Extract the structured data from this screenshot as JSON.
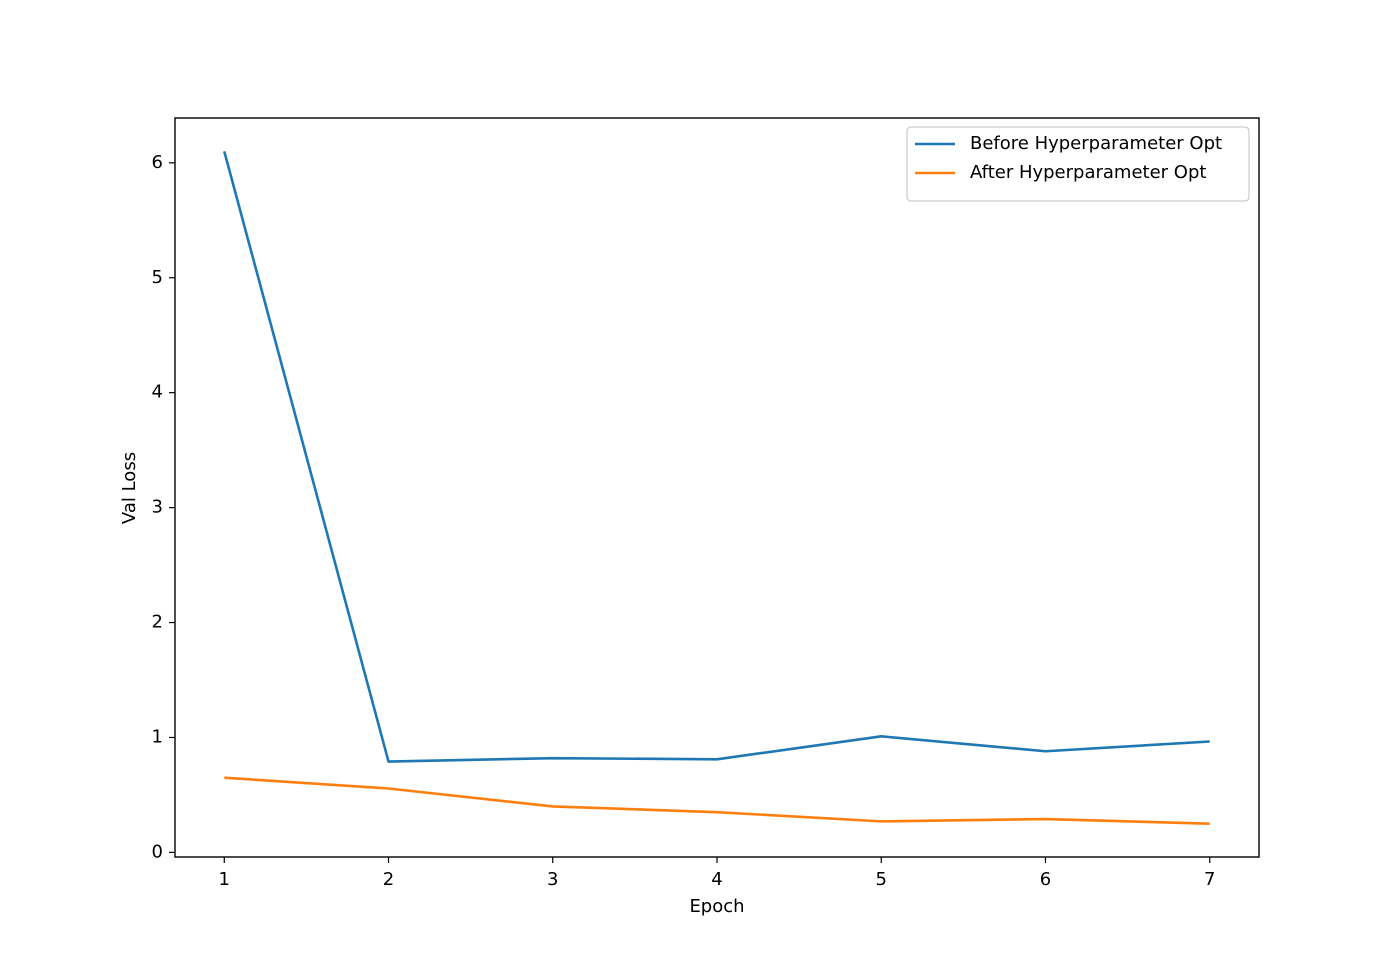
{
  "chart_data": {
    "type": "line",
    "x_label": "Epoch",
    "y_label": "Val Loss",
    "x": [
      1,
      2,
      3,
      4,
      5,
      6,
      7
    ],
    "series": [
      {
        "name": "Before Hyperparameter Opt",
        "color": "#1f77b4",
        "values": [
          6.1,
          0.79,
          0.82,
          0.81,
          1.01,
          0.88,
          0.965
        ]
      },
      {
        "name": "After Hyperparameter Opt",
        "color": "#ff7f0e",
        "values": [
          0.65,
          0.556,
          0.4,
          0.35,
          0.27,
          0.29,
          0.25
        ]
      }
    ],
    "xlim": [
      0.7,
      7.3
    ],
    "xticks": [
      1,
      2,
      3,
      4,
      5,
      6,
      7
    ],
    "ylim": [
      -0.04,
      6.39
    ],
    "yticks": [
      0,
      1,
      2,
      3,
      4,
      5,
      6
    ],
    "grid": false,
    "legend": "upper-right"
  }
}
